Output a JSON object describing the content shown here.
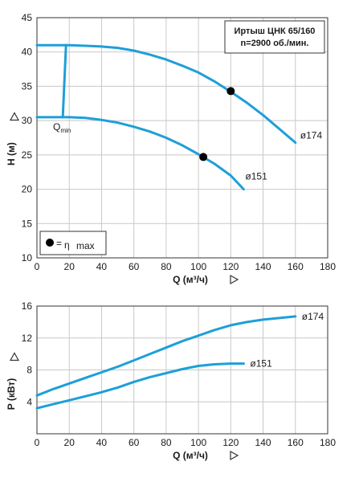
{
  "colors": {
    "curve": "#1e9fd8",
    "marker": "#000000",
    "grid": "#c8c8c8",
    "axis": "#333333"
  },
  "chart_data": [
    {
      "type": "line",
      "title": "",
      "info_box": {
        "line1": "Иртыш ЦНК 65/160",
        "line2": "n=2900 об./мин."
      },
      "xlabel": "Q (м³/ч)",
      "ylabel": "H (м)",
      "xlim": [
        0,
        180
      ],
      "ylim": [
        10,
        45
      ],
      "xticks": [
        0,
        20,
        40,
        60,
        80,
        100,
        120,
        140,
        160,
        180
      ],
      "yticks": [
        10,
        15,
        20,
        25,
        30,
        35,
        40,
        45
      ],
      "grid": true,
      "legend": {
        "position": "bottom-left",
        "symbol": "marker-dot",
        "label_eq": "=",
        "label_eta": "η",
        "label_sub": "max"
      },
      "series": [
        {
          "name": "ø174",
          "x": [
            0,
            10,
            20,
            30,
            40,
            50,
            60,
            70,
            80,
            90,
            100,
            110,
            120,
            130,
            140,
            150,
            160
          ],
          "y": [
            41.0,
            41.0,
            41.0,
            40.9,
            40.8,
            40.6,
            40.2,
            39.6,
            38.9,
            38.0,
            37.0,
            35.7,
            34.2,
            32.6,
            30.8,
            28.8,
            26.8
          ],
          "end_label": "ø174",
          "bep": {
            "x": 120,
            "y": 34.3
          }
        },
        {
          "name": "ø151",
          "x": [
            0,
            10,
            20,
            30,
            40,
            50,
            60,
            70,
            80,
            90,
            100,
            110,
            120,
            128
          ],
          "y": [
            30.5,
            30.5,
            30.5,
            30.4,
            30.1,
            29.7,
            29.1,
            28.4,
            27.5,
            26.4,
            25.1,
            23.7,
            22.0,
            20.0
          ],
          "end_label": "ø151",
          "bep": {
            "x": 103,
            "y": 24.7
          }
        }
      ],
      "qmin": {
        "label": "Q",
        "sub": "min",
        "x_top": 18,
        "x_bottom": 16
      }
    },
    {
      "type": "line",
      "title": "",
      "xlabel": "Q (м³/ч)",
      "ylabel": "P (кВт)",
      "xlim": [
        0,
        180
      ],
      "ylim": [
        0,
        16
      ],
      "xticks": [
        0,
        20,
        40,
        60,
        80,
        100,
        120,
        140,
        160,
        180
      ],
      "yticks": [
        4,
        8,
        12,
        16
      ],
      "grid": true,
      "series": [
        {
          "name": "ø174",
          "x": [
            0,
            10,
            20,
            30,
            40,
            50,
            60,
            70,
            80,
            90,
            100,
            110,
            120,
            130,
            140,
            150,
            160
          ],
          "y": [
            4.8,
            5.6,
            6.3,
            7.0,
            7.7,
            8.4,
            9.2,
            10.0,
            10.8,
            11.6,
            12.3,
            13.0,
            13.6,
            14.0,
            14.3,
            14.5,
            14.7
          ],
          "end_label": "ø174"
        },
        {
          "name": "ø151",
          "x": [
            0,
            10,
            20,
            30,
            40,
            50,
            60,
            70,
            80,
            90,
            100,
            110,
            120,
            128
          ],
          "y": [
            3.2,
            3.7,
            4.2,
            4.7,
            5.2,
            5.8,
            6.5,
            7.1,
            7.6,
            8.1,
            8.5,
            8.7,
            8.8,
            8.8
          ],
          "end_label": "ø151"
        }
      ]
    }
  ]
}
